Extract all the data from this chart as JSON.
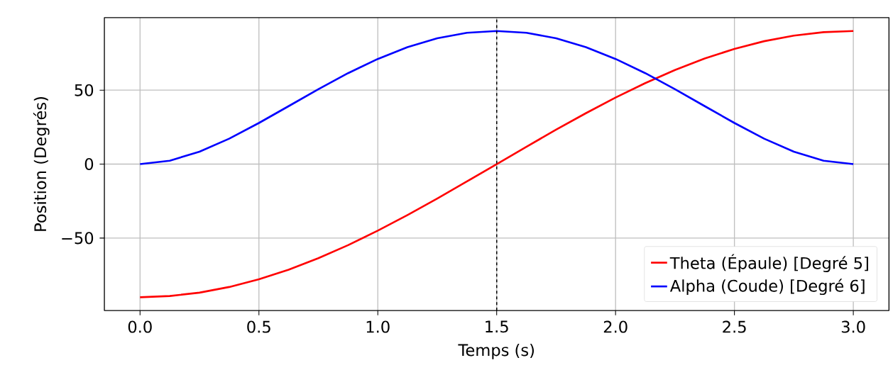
{
  "chart_data": {
    "type": "line",
    "xlabel": "Temps (s)",
    "ylabel": "Position (Degrés)",
    "x": [
      0,
      0.125,
      0.25,
      0.375,
      0.5,
      0.625,
      0.75,
      0.875,
      1.0,
      1.125,
      1.25,
      1.375,
      1.5,
      1.625,
      1.75,
      1.875,
      2.0,
      2.125,
      2.25,
      2.375,
      2.5,
      2.625,
      2.75,
      2.875,
      3.0
    ],
    "series": [
      {
        "name": "Theta (Épaule) [Degré 5]",
        "color": "#ff0000",
        "values": [
          -90,
          -89.2,
          -86.9,
          -83.1,
          -77.9,
          -71.4,
          -63.6,
          -54.8,
          -45,
          -34.4,
          -23.3,
          -11.7,
          0,
          11.7,
          23.3,
          34.4,
          45,
          54.8,
          63.6,
          71.4,
          77.9,
          83.1,
          86.9,
          89.2,
          90
        ]
      },
      {
        "name": "Alpha (Coude) [Degré 6]",
        "color": "#0000ff",
        "values": [
          0,
          2.3,
          8.4,
          17.2,
          27.8,
          39.2,
          50.6,
          61.5,
          71.1,
          79.1,
          85.1,
          88.8,
          90,
          88.8,
          85.1,
          79.1,
          71.1,
          61.5,
          50.6,
          39.2,
          27.8,
          17.2,
          8.4,
          2.3,
          0
        ]
      }
    ],
    "xlim": [
      -0.15,
      3.15
    ],
    "ylim": [
      -99,
      99
    ],
    "xticks": [
      {
        "value": 0,
        "label": "0.0"
      },
      {
        "value": 0.5,
        "label": "0.5"
      },
      {
        "value": 1,
        "label": "1.0"
      },
      {
        "value": 1.5,
        "label": "1.5"
      },
      {
        "value": 2,
        "label": "2.0"
      },
      {
        "value": 2.5,
        "label": "2.5"
      },
      {
        "value": 3,
        "label": "3.0"
      }
    ],
    "yticks": [
      {
        "value": -50,
        "label": "−50"
      },
      0,
      50
    ],
    "ref_lines": [
      {
        "axis": "x",
        "value": 1.5,
        "color": "#000000",
        "line_style": "dashed"
      }
    ],
    "grid": true,
    "legend": "bottom right",
    "marker": "none",
    "line_style": "solid"
  }
}
